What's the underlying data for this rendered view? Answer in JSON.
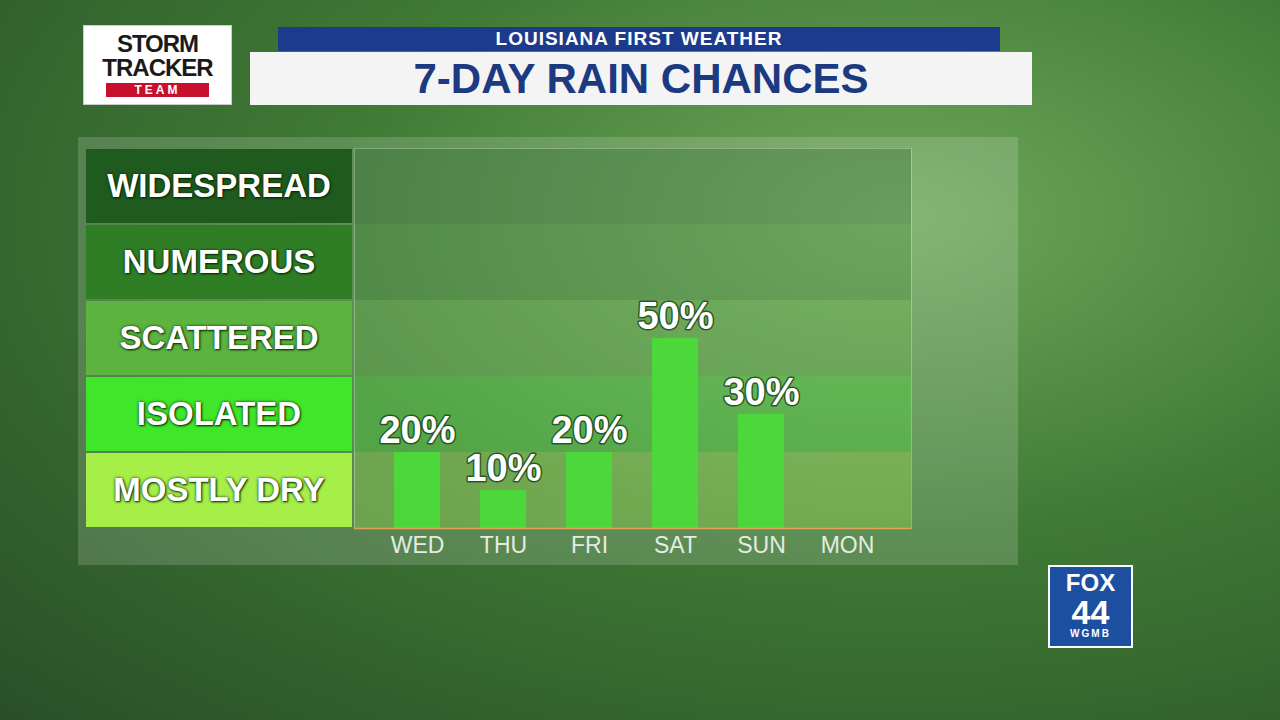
{
  "chart_data": {
    "type": "bar",
    "subtitle": "LOUISIANA FIRST WEATHER",
    "title": "7-DAY RAIN CHANCES",
    "categories": [
      "WED",
      "THU",
      "FRI",
      "SAT",
      "SUN",
      "MON"
    ],
    "values": [
      20,
      10,
      20,
      50,
      30,
      null
    ],
    "value_labels": [
      "20%",
      "10%",
      "20%",
      "50%",
      "30%",
      null
    ],
    "data_labels": true,
    "color": "#4cd83a",
    "ylim": [
      0,
      100
    ],
    "tick_labels": "x",
    "grid": false,
    "bands": [
      {
        "label": "MOSTLY DRY",
        "from": 0,
        "to": 20,
        "color": "#a6ee48"
      },
      {
        "label": "ISOLATED",
        "from": 20,
        "to": 40,
        "color": "#3fe62a"
      },
      {
        "label": "SCATTERED",
        "from": 40,
        "to": 60,
        "color": "#5cb43e"
      },
      {
        "label": "NUMEROUS",
        "from": 60,
        "to": 80,
        "color": "#2f7d24"
      },
      {
        "label": "WIDESPREAD",
        "from": 80,
        "to": 100,
        "color": "#1f5a1f"
      }
    ]
  },
  "logos": {
    "team": [
      "STORM",
      "TRACKER",
      "TEAM"
    ],
    "station": [
      "FOX",
      "44",
      "WGMB"
    ]
  }
}
